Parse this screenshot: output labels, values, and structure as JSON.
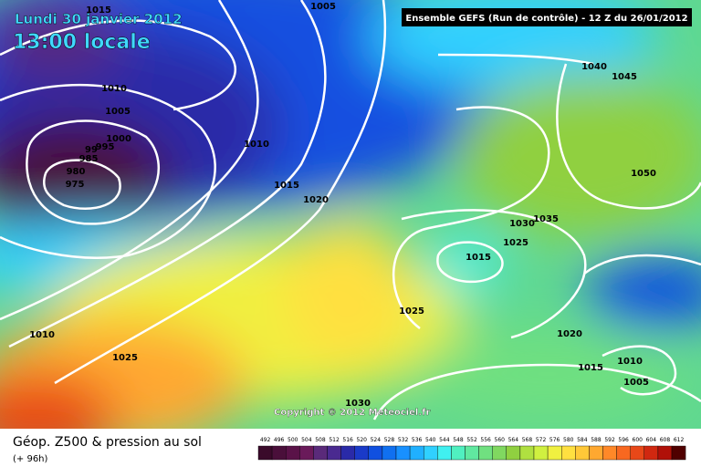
{
  "header": {
    "date": "Lundi 30 janvier 2012",
    "time": "13:00 locale",
    "run": "Ensemble GEFS (Run de contrôle)  -  12 Z du 26/01/2012"
  },
  "map": {
    "isobar_labels": [
      "1015",
      "1005",
      "1010",
      "1005",
      "1000",
      "995",
      "99",
      "985",
      "980",
      "975",
      "1010",
      "1015",
      "1020",
      "1040",
      "1045",
      "1050",
      "1035",
      "1030",
      "1025",
      "1015",
      "1025",
      "1010",
      "1025",
      "1020",
      "1015",
      "1010",
      "1005",
      "1030"
    ],
    "copyright": "Copyright © 2012 Meteociel.fr"
  },
  "legend": {
    "title": "Géop. Z500 & pression au sol",
    "subtitle": "(+ 96h)",
    "labels": [
      492,
      496,
      500,
      504,
      508,
      512,
      516,
      520,
      524,
      528,
      532,
      536,
      540,
      544,
      548,
      552,
      556,
      560,
      564,
      568,
      572,
      576,
      580,
      584,
      588,
      592,
      596,
      600,
      604,
      608,
      612
    ],
    "colors": [
      "#3a0a2a",
      "#4a0f3a",
      "#5a1248",
      "#6a1a5a",
      "#5a2a7a",
      "#4a2a90",
      "#2a2aa8",
      "#1a3ac8",
      "#1050e0",
      "#1070f0",
      "#1890ff",
      "#20b0ff",
      "#30d0ff",
      "#40f0f0",
      "#50f0c0",
      "#60e8a0",
      "#70e080",
      "#80d860",
      "#90d040",
      "#b0e040",
      "#d0f040",
      "#f0f040",
      "#ffe040",
      "#ffc838",
      "#ffa830",
      "#ff8828",
      "#f86820",
      "#e84818",
      "#d02810",
      "#b01008",
      "#500000"
    ]
  }
}
